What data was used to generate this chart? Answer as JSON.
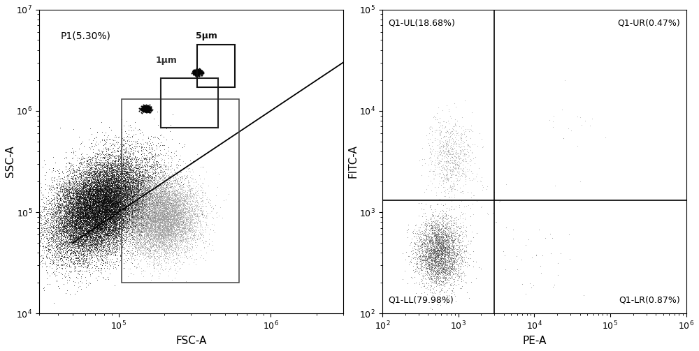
{
  "left_plot": {
    "xlabel": "FSC-A",
    "ylabel": "SSC-A",
    "xlim": [
      30000.0,
      3000000.0
    ],
    "ylim": [
      10000.0,
      10000000.0
    ],
    "label_p1": "P1(5.30%)",
    "label_1um": "1μm",
    "label_5um": "5μm",
    "main_cluster_fsc_log_mean": 4.88,
    "main_cluster_ssc_log_mean": 5.05,
    "main_cluster_fsc_sigma": 0.38,
    "main_cluster_ssc_sigma": 0.52,
    "main_cluster_n": 22000,
    "gray_cloud_fsc_log_mean": 5.28,
    "gray_cloud_ssc_log_mean": 4.95,
    "gray_cloud_fsc_sigma": 0.28,
    "gray_cloud_ssc_sigma": 0.45,
    "gray_cloud_n": 9000,
    "bead_1um_fsc_log": 5.18,
    "bead_1um_ssc_log": 6.02,
    "bead_5um_fsc_log": 5.52,
    "bead_5um_ssc_log": 6.38,
    "bead_sigma": 0.035,
    "bead_n": 400,
    "gate_large_x0": 105000.0,
    "gate_large_x1": 620000.0,
    "gate_large_y0": 20000.0,
    "gate_large_y1": 1300000.0,
    "gate_1um_x0": 190000.0,
    "gate_1um_x1": 450000.0,
    "gate_1um_y0": 680000.0,
    "gate_1um_y1": 2100000.0,
    "gate_5um_x0": 330000.0,
    "gate_5um_x1": 580000.0,
    "gate_5um_y0": 1700000.0,
    "gate_5um_y1": 4500000.0,
    "diag_x0_log": 4.7,
    "diag_x1_log": 7.0
  },
  "right_plot": {
    "xlabel": "PE-A",
    "ylabel": "FITC-A",
    "xlim": [
      100.0,
      1000000.0
    ],
    "ylim": [
      100.0,
      100000.0
    ],
    "gate_x": 3000.0,
    "gate_y": 1300.0,
    "label_ul": "Q1-UL(18.68%)",
    "label_ur": "Q1-UR(0.47%)",
    "label_ll": "Q1-LL(79.98%)",
    "label_lr": "Q1-LR(0.87%)",
    "ll_pe_log_mean": 2.75,
    "ll_fitc_log_mean": 2.6,
    "ll_pe_sigma": 0.35,
    "ll_fitc_sigma": 0.38,
    "ll_n": 3200,
    "ul_pe_log_mean": 2.9,
    "ul_fitc_log_mean": 3.55,
    "ul_pe_sigma": 0.32,
    "ul_fitc_sigma": 0.42,
    "ul_n": 750,
    "lr_n": 35,
    "ur_n": 20,
    "sparse_n": 80
  },
  "bg_color": "#ffffff"
}
